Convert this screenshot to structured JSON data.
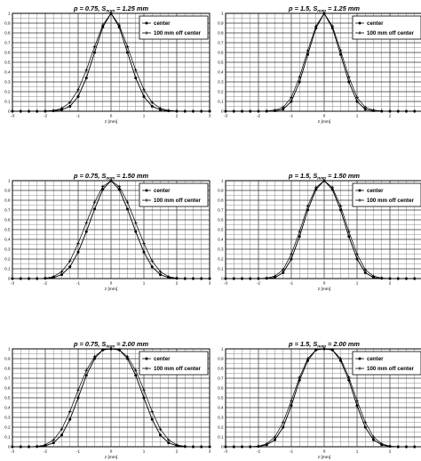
{
  "chart_data": [
    {
      "type": "line",
      "title": "p = 0.75, Snom = 1.25 mm",
      "title_parts": {
        "p_symbol": "p",
        "p_value": " = 0.75, ",
        "s_symbol": "S",
        "s_subscript": "nom",
        "s_value": " = 1.25 mm"
      },
      "xlabel": "z [mm]",
      "xlim": [
        -3,
        3
      ],
      "ylim": [
        0,
        1
      ],
      "xticks": [
        "-3",
        "-2",
        "-1",
        "0",
        "1",
        "2",
        "3"
      ],
      "yticks": [
        "0",
        "0.1",
        "0.2",
        "0.3",
        "0.4",
        "0.5",
        "0.6",
        "0.7",
        "0.8",
        "0.9",
        "1"
      ],
      "grid": true,
      "legend_position": "top-right",
      "series": [
        {
          "name": "center",
          "marker": "circle",
          "x": [
            -3,
            -2.75,
            -2.5,
            -2.25,
            -2,
            -1.75,
            -1.5,
            -1.25,
            -1,
            -0.75,
            -0.5,
            -0.25,
            0,
            0.25,
            0.5,
            0.75,
            1,
            1.25,
            1.5,
            1.75,
            2,
            2.25,
            2.5,
            2.75,
            3
          ],
          "y": [
            0,
            0,
            0,
            0,
            0,
            0.003,
            0.015,
            0.05,
            0.15,
            0.34,
            0.6,
            0.86,
            1,
            0.86,
            0.6,
            0.34,
            0.15,
            0.05,
            0.015,
            0.003,
            0,
            0,
            0,
            0,
            0
          ]
        },
        {
          "name": "100 mm off center",
          "marker": "plus",
          "x": [
            -3,
            -2.75,
            -2.5,
            -2.25,
            -2,
            -1.75,
            -1.5,
            -1.25,
            -1,
            -0.75,
            -0.5,
            -0.25,
            0,
            0.25,
            0.5,
            0.75,
            1,
            1.25,
            1.5,
            1.75,
            2,
            2.25,
            2.5,
            2.75,
            3
          ],
          "y": [
            0,
            0,
            0,
            0,
            0.002,
            0.008,
            0.03,
            0.09,
            0.22,
            0.42,
            0.66,
            0.88,
            1,
            0.88,
            0.66,
            0.42,
            0.22,
            0.09,
            0.03,
            0.008,
            0.002,
            0,
            0,
            0,
            0
          ]
        }
      ]
    },
    {
      "type": "line",
      "title": "p = 1.5, Snom = 1.25 mm",
      "title_parts": {
        "p_symbol": "p",
        "p_value": " = 1.5, ",
        "s_symbol": "S",
        "s_subscript": "nom",
        "s_value": " = 1.25 mm"
      },
      "xlabel": "z [mm]",
      "xlim": [
        -3,
        3
      ],
      "ylim": [
        0,
        1
      ],
      "xticks": [
        "-3",
        "-2",
        "-1",
        "0",
        "1",
        "2",
        "3"
      ],
      "yticks": [
        "0",
        "0.1",
        "0.2",
        "0.3",
        "0.4",
        "0.5",
        "0.6",
        "0.7",
        "0.8",
        "0.9",
        "1"
      ],
      "grid": true,
      "legend_position": "top-right",
      "series": [
        {
          "name": "center",
          "marker": "circle",
          "x": [
            -3,
            -2.75,
            -2.5,
            -2.25,
            -2,
            -1.75,
            -1.5,
            -1.25,
            -1,
            -0.75,
            -0.5,
            -0.25,
            0,
            0.25,
            0.5,
            0.75,
            1,
            1.25,
            1.5,
            1.75,
            2,
            2.25,
            2.5,
            2.75,
            3
          ],
          "y": [
            0,
            0,
            0,
            0,
            0,
            0,
            0.005,
            0.02,
            0.1,
            0.3,
            0.58,
            0.85,
            1,
            0.85,
            0.58,
            0.3,
            0.1,
            0.02,
            0.005,
            0,
            0,
            0,
            0,
            0,
            0
          ]
        },
        {
          "name": "100 mm off center",
          "marker": "plus",
          "x": [
            -3,
            -2.75,
            -2.5,
            -2.25,
            -2,
            -1.75,
            -1.5,
            -1.25,
            -1,
            -0.75,
            -0.5,
            -0.25,
            0,
            0.25,
            0.5,
            0.75,
            1,
            1.25,
            1.5,
            1.75,
            2,
            2.25,
            2.5,
            2.75,
            3
          ],
          "y": [
            0,
            0,
            0,
            0,
            0,
            0.003,
            0.012,
            0.04,
            0.14,
            0.35,
            0.62,
            0.87,
            1,
            0.87,
            0.62,
            0.35,
            0.14,
            0.04,
            0.012,
            0.003,
            0,
            0,
            0,
            0,
            0
          ]
        }
      ]
    },
    {
      "type": "line",
      "title": "p = 0.75, Snom = 1.50 mm",
      "title_parts": {
        "p_symbol": "p",
        "p_value": " = 0.75, ",
        "s_symbol": "S",
        "s_subscript": "nom",
        "s_value": " = 1.50 mm"
      },
      "xlabel": "z [mm]",
      "xlim": [
        -3,
        3
      ],
      "ylim": [
        0,
        1
      ],
      "xticks": [
        "-3",
        "-2",
        "-1",
        "0",
        "1",
        "2",
        "3"
      ],
      "yticks": [
        "0",
        "0.1",
        "0.2",
        "0.3",
        "0.4",
        "0.5",
        "0.6",
        "0.7",
        "0.8",
        "0.9",
        "1"
      ],
      "grid": true,
      "legend_position": "top-right",
      "series": [
        {
          "name": "center",
          "marker": "circle",
          "x": [
            -3,
            -2.75,
            -2.5,
            -2.25,
            -2,
            -1.75,
            -1.5,
            -1.25,
            -1,
            -0.75,
            -0.5,
            -0.25,
            0,
            0.25,
            0.5,
            0.75,
            1,
            1.25,
            1.5,
            1.75,
            2,
            2.25,
            2.5,
            2.75,
            3
          ],
          "y": [
            0,
            0,
            0,
            0,
            0.002,
            0.01,
            0.04,
            0.12,
            0.27,
            0.48,
            0.71,
            0.91,
            1,
            0.91,
            0.71,
            0.48,
            0.27,
            0.12,
            0.04,
            0.01,
            0.002,
            0,
            0,
            0,
            0
          ]
        },
        {
          "name": "100 mm off center",
          "marker": "plus",
          "x": [
            -3,
            -2.75,
            -2.5,
            -2.25,
            -2,
            -1.75,
            -1.5,
            -1.25,
            -1,
            -0.75,
            -0.5,
            -0.25,
            0,
            0.25,
            0.5,
            0.75,
            1,
            1.25,
            1.5,
            1.75,
            2,
            2.25,
            2.5,
            2.75,
            3
          ],
          "y": [
            0,
            0,
            0,
            0,
            0.004,
            0.02,
            0.07,
            0.18,
            0.36,
            0.57,
            0.78,
            0.94,
            1,
            0.94,
            0.78,
            0.57,
            0.36,
            0.18,
            0.07,
            0.02,
            0.004,
            0,
            0,
            0,
            0
          ]
        }
      ]
    },
    {
      "type": "line",
      "title": "p = 1.5, Snom = 1.50 mm",
      "title_parts": {
        "p_symbol": "p",
        "p_value": " = 1.5, ",
        "s_symbol": "S",
        "s_subscript": "nom",
        "s_value": " = 1.50 mm"
      },
      "xlabel": "z [mm]",
      "xlim": [
        -3,
        3
      ],
      "ylim": [
        0,
        1
      ],
      "xticks": [
        "-3",
        "-2",
        "-1",
        "0",
        "1",
        "2",
        "3"
      ],
      "yticks": [
        "0",
        "0.1",
        "0.2",
        "0.3",
        "0.4",
        "0.5",
        "0.6",
        "0.7",
        "0.8",
        "0.9",
        "1"
      ],
      "grid": true,
      "legend_position": "top-right",
      "series": [
        {
          "name": "center",
          "marker": "circle",
          "x": [
            -3,
            -2.75,
            -2.5,
            -2.25,
            -2,
            -1.75,
            -1.5,
            -1.25,
            -1,
            -0.75,
            -0.5,
            -0.25,
            0,
            0.25,
            0.5,
            0.75,
            1,
            1.25,
            1.5,
            1.75,
            2,
            2.25,
            2.5,
            2.75,
            3
          ],
          "y": [
            0,
            0,
            0,
            0,
            0,
            0.002,
            0.01,
            0.06,
            0.2,
            0.43,
            0.7,
            0.91,
            1,
            0.91,
            0.7,
            0.43,
            0.2,
            0.06,
            0.01,
            0.002,
            0,
            0,
            0,
            0,
            0
          ]
        },
        {
          "name": "100 mm off center",
          "marker": "plus",
          "x": [
            -3,
            -2.75,
            -2.5,
            -2.25,
            -2,
            -1.75,
            -1.5,
            -1.25,
            -1,
            -0.75,
            -0.5,
            -0.25,
            0,
            0.25,
            0.5,
            0.75,
            1,
            1.25,
            1.5,
            1.75,
            2,
            2.25,
            2.5,
            2.75,
            3
          ],
          "y": [
            0,
            0,
            0,
            0,
            0.001,
            0.005,
            0.025,
            0.09,
            0.25,
            0.48,
            0.74,
            0.93,
            1,
            0.93,
            0.74,
            0.48,
            0.25,
            0.09,
            0.025,
            0.005,
            0.001,
            0,
            0,
            0,
            0
          ]
        }
      ]
    },
    {
      "type": "line",
      "title": "p = 0.75, Snom = 2.00 mm",
      "title_parts": {
        "p_symbol": "p",
        "p_value": " = 0.75, ",
        "s_symbol": "S",
        "s_subscript": "nom",
        "s_value": " = 2.00 mm"
      },
      "xlabel": "z [mm]",
      "xlim": [
        -3,
        3
      ],
      "ylim": [
        0,
        1
      ],
      "xticks": [
        "-3",
        "-2",
        "-1",
        "0",
        "1",
        "2",
        "3"
      ],
      "yticks": [
        "0",
        "0.1",
        "0.2",
        "0.3",
        "0.4",
        "0.5",
        "0.6",
        "0.7",
        "0.8",
        "0.9",
        "1"
      ],
      "grid": true,
      "legend_position": "top-right",
      "series": [
        {
          "name": "center",
          "marker": "circle",
          "x": [
            -3,
            -2.75,
            -2.5,
            -2.25,
            -2,
            -1.75,
            -1.5,
            -1.25,
            -1,
            -0.75,
            -0.5,
            -0.25,
            0,
            0.25,
            0.5,
            0.75,
            1,
            1.25,
            1.5,
            1.75,
            2,
            2.25,
            2.5,
            2.75,
            3
          ],
          "y": [
            0,
            0,
            0,
            0.002,
            0.01,
            0.04,
            0.12,
            0.28,
            0.5,
            0.73,
            0.9,
            0.99,
            1,
            0.99,
            0.9,
            0.73,
            0.5,
            0.28,
            0.12,
            0.04,
            0.01,
            0.002,
            0,
            0,
            0
          ]
        },
        {
          "name": "100 mm off center",
          "marker": "plus",
          "x": [
            -3,
            -2.75,
            -2.5,
            -2.25,
            -2,
            -1.75,
            -1.5,
            -1.25,
            -1,
            -0.75,
            -0.5,
            -0.25,
            0,
            0.25,
            0.5,
            0.75,
            1,
            1.25,
            1.5,
            1.75,
            2,
            2.25,
            2.5,
            2.75,
            3
          ],
          "y": [
            0,
            0,
            0,
            0.004,
            0.02,
            0.07,
            0.18,
            0.36,
            0.58,
            0.78,
            0.92,
            0.99,
            1,
            0.99,
            0.92,
            0.78,
            0.58,
            0.36,
            0.18,
            0.07,
            0.02,
            0.004,
            0,
            0,
            0
          ]
        }
      ]
    },
    {
      "type": "line",
      "title": "p = 1.5, Snom = 2.00 mm",
      "title_parts": {
        "p_symbol": "p",
        "p_value": " = 1.5, ",
        "s_symbol": "S",
        "s_subscript": "nom",
        "s_value": " = 2.00 mm"
      },
      "xlabel": "z [mm]",
      "xlim": [
        -3,
        3
      ],
      "ylim": [
        0,
        1
      ],
      "xticks": [
        "-3",
        "-2",
        "-1",
        "0",
        "1",
        "2",
        "3"
      ],
      "yticks": [
        "0",
        "0.1",
        "0.2",
        "0.3",
        "0.4",
        "0.5",
        "0.6",
        "0.7",
        "0.8",
        "0.9",
        "1"
      ],
      "grid": true,
      "legend_position": "top-right",
      "series": [
        {
          "name": "center",
          "marker": "circle",
          "x": [
            -3,
            -2.75,
            -2.5,
            -2.25,
            -2,
            -1.75,
            -1.5,
            -1.25,
            -1,
            -0.75,
            -0.5,
            -0.25,
            0,
            0.25,
            0.5,
            0.75,
            1,
            1.25,
            1.5,
            1.75,
            2,
            2.25,
            2.5,
            2.75,
            3
          ],
          "y": [
            0,
            0,
            0,
            0,
            0.003,
            0.02,
            0.07,
            0.2,
            0.42,
            0.68,
            0.88,
            0.99,
            1,
            0.99,
            0.88,
            0.68,
            0.42,
            0.2,
            0.07,
            0.02,
            0.003,
            0,
            0,
            0,
            0
          ]
        },
        {
          "name": "100 mm off center",
          "marker": "plus",
          "x": [
            -3,
            -2.75,
            -2.5,
            -2.25,
            -2,
            -1.75,
            -1.5,
            -1.25,
            -1,
            -0.75,
            -0.5,
            -0.25,
            0,
            0.25,
            0.5,
            0.75,
            1,
            1.25,
            1.5,
            1.75,
            2,
            2.25,
            2.5,
            2.75,
            3
          ],
          "y": [
            0,
            0,
            0,
            0,
            0.006,
            0.03,
            0.1,
            0.25,
            0.47,
            0.71,
            0.9,
            0.99,
            1,
            0.99,
            0.9,
            0.71,
            0.47,
            0.25,
            0.1,
            0.03,
            0.006,
            0,
            0,
            0,
            0
          ]
        }
      ]
    }
  ]
}
